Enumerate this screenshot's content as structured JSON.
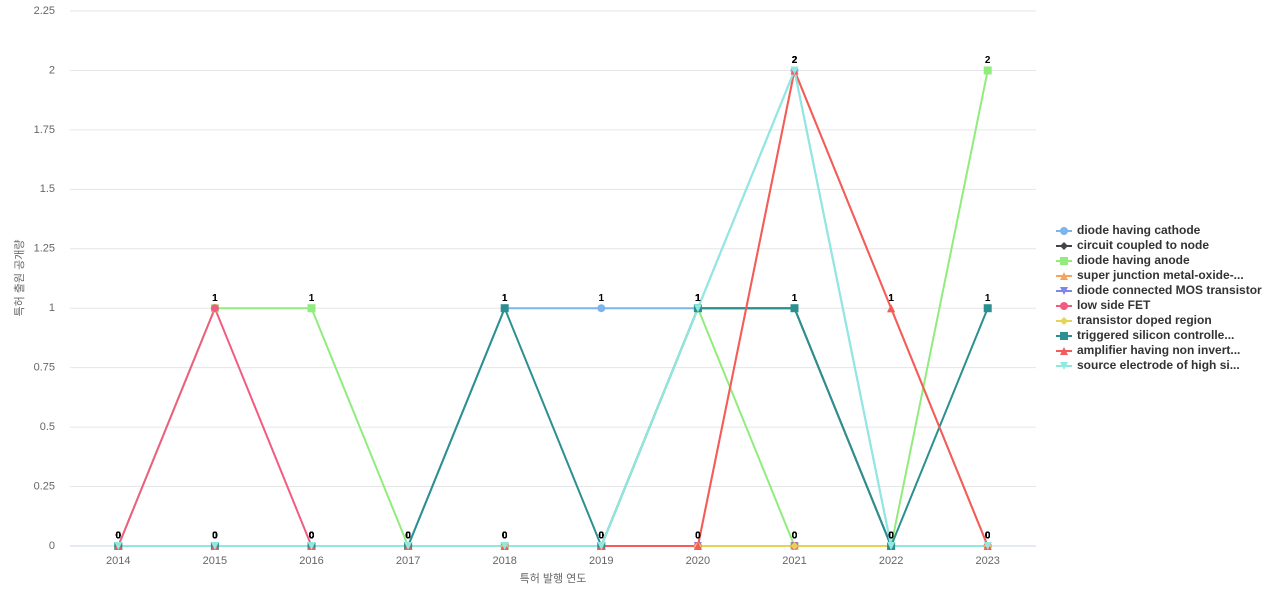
{
  "chart_data": {
    "type": "line",
    "x_label": "특허 발행 연도",
    "y_label": "특허 출원 공개량",
    "categories": [
      "2014",
      "2015",
      "2016",
      "2017",
      "2018",
      "2019",
      "2020",
      "2021",
      "2022",
      "2023"
    ],
    "ylim": [
      0,
      2.25
    ],
    "yticks": [
      0,
      0.25,
      0.5,
      0.75,
      1,
      1.25,
      1.5,
      1.75,
      2,
      2.25
    ],
    "grid": true,
    "legend": "right",
    "series": [
      {
        "name": "diode having cathode",
        "color": "#7cb5ec",
        "marker": "circle",
        "values": [
          0,
          0,
          0,
          0,
          1,
          1,
          1,
          2,
          0,
          0
        ]
      },
      {
        "name": "circuit coupled to node",
        "color": "#434348",
        "marker": "diamond",
        "values": [
          0,
          0,
          0,
          0,
          0,
          0,
          1,
          1,
          0,
          0
        ]
      },
      {
        "name": "diode having anode",
        "color": "#90ed7d",
        "marker": "square",
        "values": [
          0,
          1,
          1,
          0,
          0,
          0,
          1,
          0,
          0,
          2
        ]
      },
      {
        "name": "super junction metal-oxide-...",
        "color": "#f7a35c",
        "marker": "triangle",
        "values": [
          0,
          0,
          0,
          0,
          0,
          0,
          0,
          2,
          1,
          0
        ]
      },
      {
        "name": "diode connected MOS transistor",
        "color": "#8085e9",
        "marker": "triangle-down",
        "values": [
          0,
          0,
          0,
          0,
          0,
          0,
          0,
          0,
          0,
          0
        ]
      },
      {
        "name": "low side FET",
        "color": "#f15c80",
        "marker": "circle",
        "values": [
          0,
          1,
          0,
          0,
          0,
          0,
          0,
          0,
          0,
          0
        ]
      },
      {
        "name": "transistor doped region",
        "color": "#e4d354",
        "marker": "diamond",
        "values": [
          0,
          0,
          0,
          0,
          0,
          0,
          0,
          0,
          0,
          0
        ]
      },
      {
        "name": "triggered silicon controlle...",
        "color": "#2b908f",
        "marker": "square",
        "values": [
          0,
          0,
          0,
          0,
          1,
          0,
          1,
          1,
          0,
          1
        ]
      },
      {
        "name": "amplifier having non invert...",
        "color": "#f45b5b",
        "marker": "triangle",
        "values": [
          0,
          0,
          0,
          0,
          0,
          0,
          0,
          2,
          1,
          0
        ]
      },
      {
        "name": "source electrode of high si...",
        "color": "#91e8e1",
        "marker": "triangle-down",
        "values": [
          0,
          0,
          0,
          0,
          0,
          0,
          1,
          2,
          0,
          0
        ]
      }
    ]
  }
}
